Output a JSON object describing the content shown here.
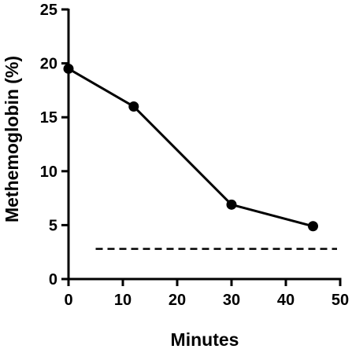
{
  "chart_data": {
    "type": "line",
    "title": "",
    "xlabel": "Minutes",
    "ylabel": "Methemoglobin  (%)",
    "xlim": [
      0,
      50
    ],
    "ylim": [
      0,
      25
    ],
    "x_ticks": [
      "0",
      "10",
      "20",
      "30",
      "40",
      "50"
    ],
    "y_ticks": [
      "0",
      "5",
      "10",
      "15",
      "20",
      "25"
    ],
    "grid": false,
    "legend": "none",
    "series": [
      {
        "x": [
          0,
          12,
          30,
          45
        ],
        "y": [
          19.5,
          16,
          6.9,
          4.9
        ],
        "color": "#000000",
        "marker": "circle"
      }
    ],
    "reference_line": {
      "y": 2.8,
      "style": "dashed",
      "color": "#000000"
    }
  }
}
